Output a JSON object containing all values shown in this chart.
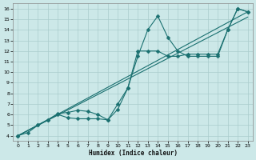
{
  "xlabel": "Humidex (Indice chaleur)",
  "bg_color": "#cce8e8",
  "grid_color": "#aacccc",
  "line_color": "#1a7070",
  "xlim": [
    -0.5,
    23.5
  ],
  "ylim": [
    3.5,
    16.5
  ],
  "xticks": [
    0,
    1,
    2,
    3,
    4,
    5,
    6,
    7,
    8,
    9,
    10,
    11,
    12,
    13,
    14,
    15,
    16,
    17,
    18,
    19,
    20,
    21,
    22,
    23
  ],
  "yticks": [
    4,
    5,
    6,
    7,
    8,
    9,
    10,
    11,
    12,
    13,
    14,
    15,
    16
  ],
  "series": [
    {
      "x": [
        0,
        1,
        2,
        3,
        4,
        5,
        6,
        7,
        8,
        9,
        10,
        11,
        12,
        13,
        14,
        15,
        16,
        17,
        18,
        19,
        20,
        21,
        22,
        23
      ],
      "y": [
        4.0,
        4.3,
        5.0,
        5.5,
        6.0,
        5.7,
        5.6,
        5.6,
        5.6,
        5.5,
        7.0,
        8.5,
        11.5,
        14.0,
        15.3,
        13.3,
        12.0,
        11.5,
        11.5,
        11.5,
        11.5,
        14.0,
        16.0,
        15.7
      ],
      "marker": "D",
      "markersize": 2.5,
      "linewidth": 0.8
    },
    {
      "x": [
        0,
        2,
        3,
        4,
        5,
        6,
        7,
        8,
        9,
        10,
        11,
        12,
        13,
        14,
        15,
        16,
        17,
        18,
        19,
        20,
        21,
        22,
        23
      ],
      "y": [
        4.0,
        5.0,
        5.5,
        6.1,
        6.2,
        6.4,
        6.3,
        6.0,
        5.5,
        6.5,
        8.5,
        12.0,
        12.0,
        12.0,
        11.5,
        11.5,
        11.7,
        11.7,
        11.7,
        11.7,
        14.0,
        16.0,
        15.7
      ],
      "marker": "D",
      "markersize": 2.5,
      "linewidth": 0.8
    },
    {
      "x": [
        0,
        23
      ],
      "y": [
        4.0,
        15.2
      ],
      "marker": null,
      "markersize": 0,
      "linewidth": 0.8
    },
    {
      "x": [
        0,
        23
      ],
      "y": [
        4.0,
        15.7
      ],
      "marker": null,
      "markersize": 0,
      "linewidth": 0.8
    }
  ]
}
